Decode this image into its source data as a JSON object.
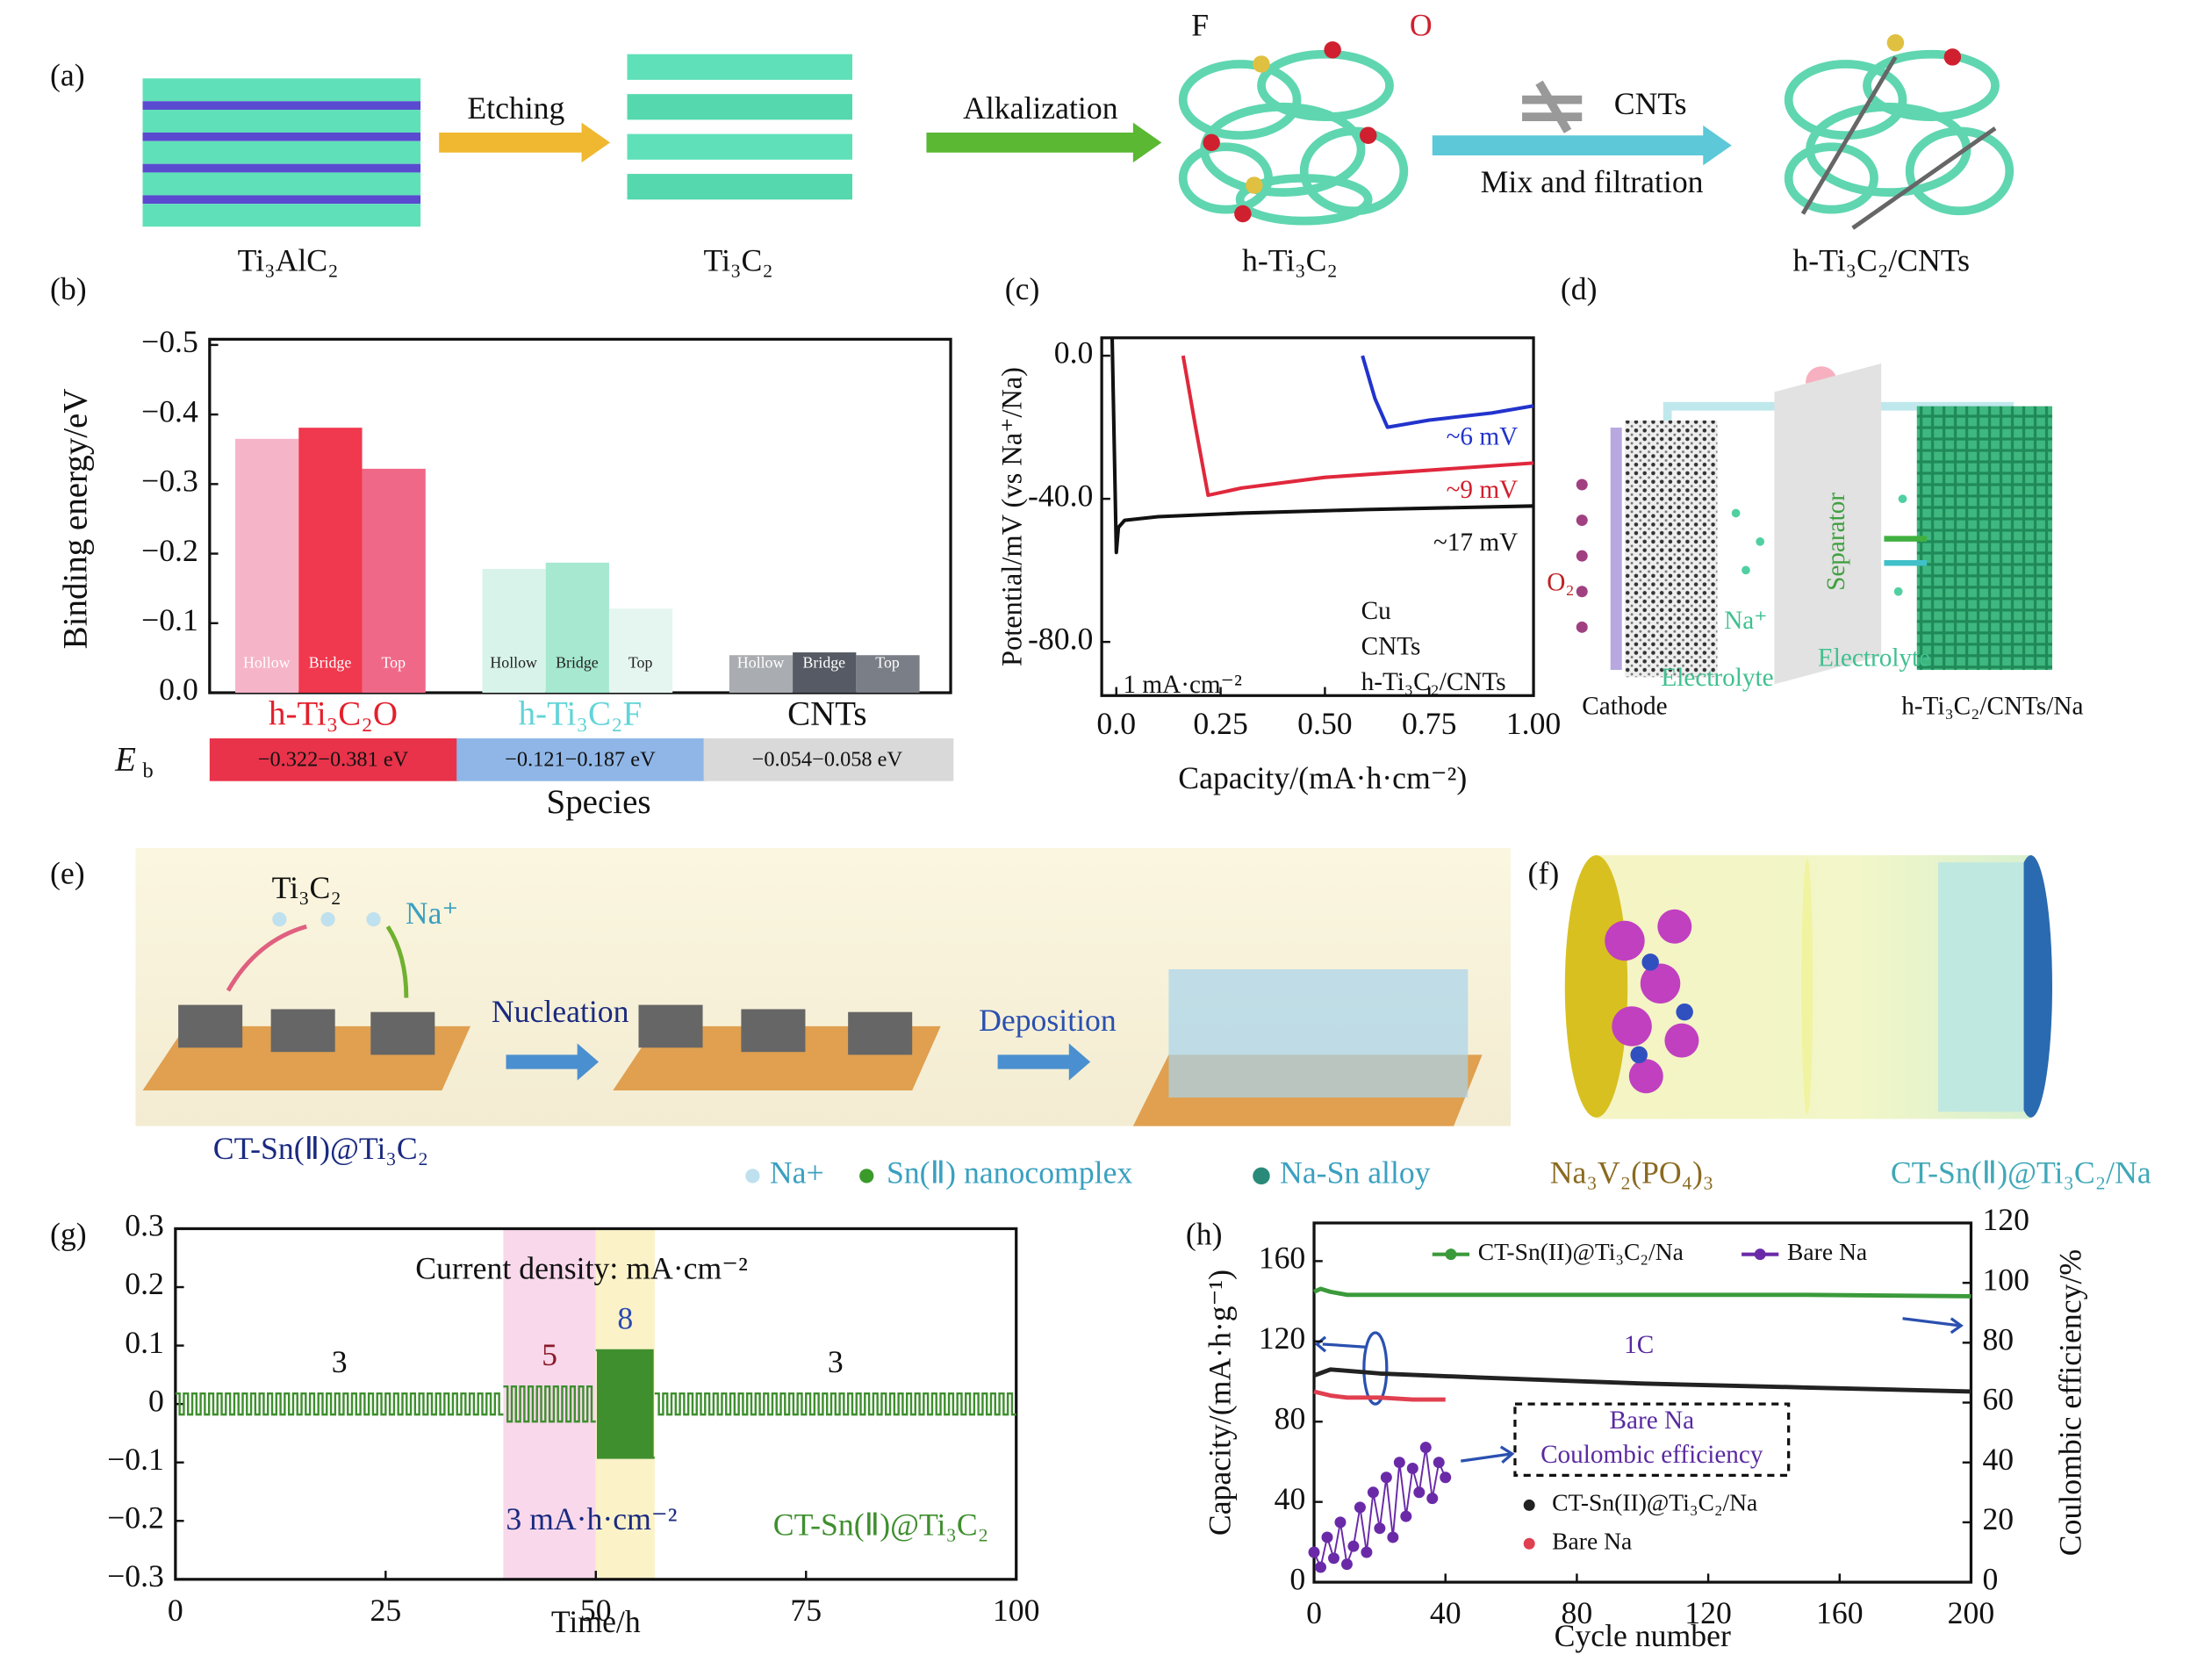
{
  "panel_labels": [
    "(a)",
    "(b)",
    "(c)",
    "(d)",
    "(e)",
    "(f)",
    "(g)",
    "(h)"
  ],
  "scheme_a": {
    "steps": [
      "Ti₃AlC₂",
      "Ti₃C₂",
      "h-Ti₃C₂",
      "h-Ti₃C₂/CNTs"
    ],
    "arrows": [
      "Etching",
      "Alkalization",
      "CNTs",
      "Mix and filtration"
    ],
    "atoms": [
      "F",
      "O"
    ]
  },
  "scheme_d": {
    "labels": [
      "O₂",
      "Na⁺",
      "Separator",
      "Electrolyte",
      "Electrolyte",
      "Cathode",
      "h-Ti₃C₂/CNTs/Na"
    ]
  },
  "scheme_e": {
    "labels": [
      "Ti₃C₂",
      "Na⁺",
      "Nucleation",
      "Deposition",
      "CT-Sn(Ⅱ)@Ti₃C₂"
    ],
    "legend": [
      "Na+",
      "Sn(Ⅱ) nanocomplex",
      "Na-Sn alloy"
    ]
  },
  "scheme_f": {
    "labels": [
      "Na₃V₂(PO₄)₃",
      "CT-Sn(Ⅱ)@Ti₃C₂/Na"
    ]
  },
  "chart_data": [
    {
      "type": "bar",
      "y_label": "Binding energy/eV",
      "x_label": "Species",
      "categories": [
        "h-Ti₃C₂O",
        "h-Ti₃C₂F",
        "CNTs"
      ],
      "category_colors": [
        "#e3202c",
        "#62d4d8",
        "#111111"
      ],
      "series": [
        {
          "name": "Hollow",
          "colors": [
            "#f6b4c9",
            "#d8f4ea",
            "#a9acb0"
          ],
          "values": [
            -0.365,
            -0.178,
            -0.054
          ]
        },
        {
          "name": "Bridge",
          "colors": [
            "#f0384e",
            "#a6e8d0",
            "#555a64"
          ],
          "values": [
            -0.381,
            -0.187,
            -0.058
          ]
        },
        {
          "name": "Top",
          "colors": [
            "#f06888",
            "#e5f6f0",
            "#7a7e86"
          ],
          "values": [
            -0.322,
            -0.121,
            -0.054
          ]
        }
      ],
      "ylim": [
        0,
        -0.5
      ],
      "yticks": [
        {
          "value": -0.5,
          "label": "−0.5"
        },
        {
          "value": -0.4,
          "label": "−0.4"
        },
        {
          "value": -0.3,
          "label": "−0.3"
        },
        {
          "value": -0.2,
          "label": "−0.2"
        },
        {
          "value": -0.1,
          "label": "−0.1"
        },
        {
          "value": 0,
          "label": "0.0"
        }
      ],
      "eb_symbol": "E",
      "eb_subscript": "b",
      "eb_values": [
        "−0.322−0.381 eV",
        "−0.121−0.187 eV",
        "−0.054−0.058 eV"
      ],
      "eb_colors": [
        "#e8334a",
        "#8fb6e6",
        "#d9d9d9"
      ]
    },
    {
      "type": "line",
      "y_label": "Potential/mV (vs Na⁺/Na)",
      "x_label": "Capacity/(mA·h·cm⁻²)",
      "xlim": [
        -0.035,
        1.0
      ],
      "xticks": [
        {
          "value": 0,
          "label": "0.0"
        },
        0.25,
        {
          "value": 0.5,
          "label": "0.50"
        },
        0.75,
        {
          "value": 1,
          "label": "1.00"
        }
      ],
      "ylim": [
        -95,
        5
      ],
      "yticks": [
        {
          "value": 0,
          "label": "0.0"
        },
        {
          "value": -40,
          "label": "-40.0"
        },
        {
          "value": -80,
          "label": "-80.0"
        }
      ],
      "series": [
        {
          "name": "Cu",
          "color": "#2233cc",
          "x": [
            0.59,
            0.62,
            0.65,
            0.75,
            0.9,
            1.0
          ],
          "values": [
            0,
            -12,
            -20,
            -18,
            -16,
            -14
          ]
        },
        {
          "name": "CNTs",
          "color": "#e0283c",
          "x": [
            0.16,
            0.19,
            0.22,
            0.3,
            0.5,
            0.75,
            1.0
          ],
          "values": [
            0,
            -20,
            -39,
            -37,
            -34,
            -32,
            -30
          ]
        },
        {
          "name": "h-Ti₃C₂/CNTs",
          "color": "#111111",
          "x": [
            -0.01,
            0.0,
            0.005,
            0.02,
            0.1,
            0.3,
            0.6,
            1.0
          ],
          "values": [
            5,
            -55,
            -48,
            -46,
            -45,
            -44,
            -43,
            -42
          ]
        }
      ],
      "annotations": [
        {
          "text": "~6 mV",
          "color": "#2233cc"
        },
        {
          "text": "~9 mV",
          "color": "#d0202c"
        },
        {
          "text": "~17 mV",
          "color": "#111111"
        },
        {
          "text": "1 mA·cm⁻²",
          "color": "#111111"
        }
      ]
    },
    {
      "type": "square-wave",
      "x_label": "Time/h",
      "xlim": [
        0,
        100
      ],
      "xticks": [
        0,
        25,
        50,
        75,
        100
      ],
      "ylim": [
        -0.3,
        0.3
      ],
      "yticks": [
        0.3,
        0.2,
        0.1,
        0,
        {
          "value": -0.1,
          "label": "−0.1"
        },
        {
          "value": -0.2,
          "label": "−0.2"
        },
        {
          "value": -0.3,
          "label": "−0.3"
        }
      ],
      "color": "#3f8f2f",
      "segments": [
        {
          "label": "3",
          "label_color": "#111111",
          "start": 0,
          "end": 39,
          "amplitude": 0.018,
          "period": 1
        },
        {
          "label": "5",
          "label_color": "#8a1a2a",
          "start": 39,
          "end": 50,
          "amplitude": 0.03,
          "period": 1,
          "shade": "#f8d8ea"
        },
        {
          "label": "8",
          "label_color": "#2a4ab0",
          "start": 50,
          "end": 57,
          "amplitude": 0.092,
          "period": 0.5,
          "shade": "#fbf2c8"
        },
        {
          "label": "3",
          "label_color": "#111111",
          "start": 57,
          "end": 100,
          "amplitude": 0.018,
          "period": 1
        }
      ],
      "annotations": [
        {
          "text": "Current density: mA·cm⁻²",
          "color": "#111111"
        },
        {
          "text": "3 mA·h·cm⁻²",
          "color": "#1a2a80"
        },
        {
          "text": "CT-Sn(Ⅱ)@Ti₃C₂",
          "color": "#3f8f2f"
        }
      ]
    },
    {
      "type": "dual-line",
      "x_label": "Cycle number",
      "y_label": "Capacity/(mA·h·g⁻¹)",
      "y2_label": "Coulombic efficiency/%",
      "xlim": [
        0,
        200
      ],
      "xticks": [
        0,
        40,
        80,
        120,
        160,
        200
      ],
      "ylim": [
        0,
        179
      ],
      "yticks": [
        0,
        40,
        80,
        120,
        160
      ],
      "y2lim": [
        0,
        120
      ],
      "y2ticks": [
        0,
        20,
        40,
        60,
        80,
        100,
        120
      ],
      "series": [
        {
          "name": "CT-Sn(II)@Ti₃C₂/Na",
          "color": "#3a9a3a",
          "axis": "y2",
          "x": [
            0,
            2,
            5,
            10,
            50,
            100,
            150,
            200
          ],
          "values": [
            97,
            98,
            97,
            96,
            96,
            96,
            96,
            95.5
          ]
        },
        {
          "name": "Bare Na",
          "color": "#6a2aa8",
          "axis": "y2",
          "x": [
            0,
            2,
            4,
            6,
            8,
            10,
            12,
            14,
            16,
            18,
            20,
            22,
            24,
            26,
            28,
            30,
            32,
            34,
            36,
            38,
            40
          ],
          "values": [
            10,
            5,
            15,
            8,
            20,
            6,
            12,
            25,
            10,
            30,
            18,
            35,
            15,
            40,
            22,
            38,
            30,
            45,
            28,
            40,
            35
          ]
        },
        {
          "name": "CT-Sn(II)@Ti₃C₂/Na",
          "color": "#222222",
          "x": [
            0,
            5,
            20,
            50,
            100,
            150,
            200
          ],
          "values": [
            103,
            106,
            104,
            102,
            99,
            97,
            95
          ]
        },
        {
          "name": "Bare Na",
          "color": "#e04050",
          "x": [
            0,
            5,
            10,
            20,
            30,
            40
          ],
          "values": [
            95,
            93,
            92,
            92,
            91,
            91
          ]
        }
      ],
      "annotations": [
        {
          "text": "1C",
          "color": "#5a2aa0"
        },
        {
          "text": "Bare Na",
          "color": "#5a2aa0"
        },
        {
          "text": "Coulombic efficiency",
          "color": "#5a2aa0"
        }
      ]
    }
  ]
}
